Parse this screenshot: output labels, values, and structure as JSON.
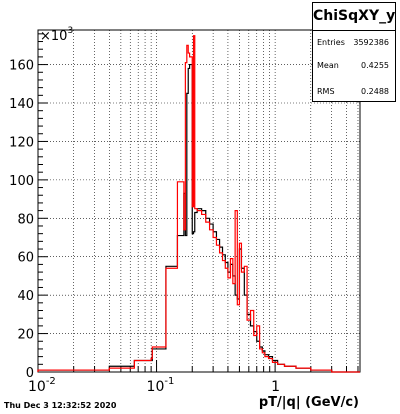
{
  "stats": {
    "title": "ChiSqXY_y",
    "rows": [
      {
        "label": "Entries",
        "value": "3592386"
      },
      {
        "label": "Mean",
        "value": "0.4255"
      },
      {
        "label": "RMS",
        "value": "0.2488"
      }
    ]
  },
  "footer": "Thu Dec  3 12:32:52 2020",
  "chart_data": {
    "type": "step-histogram",
    "title": "",
    "xlabel": "pT/|q| (GeV/c)",
    "ylabel": "",
    "y_multiplier_label": "×10",
    "y_multiplier_exponent": "3",
    "x_scale": "log",
    "xlim": [
      0.01,
      5.2
    ],
    "ylim": [
      0,
      178
    ],
    "grid": true,
    "x_tick_labels": [
      "10",
      "-2",
      "10",
      "-1",
      "1"
    ],
    "x_ticks": [
      0.01,
      0.1,
      1
    ],
    "y_ticks": [
      0,
      20,
      40,
      60,
      80,
      100,
      120,
      140,
      160
    ],
    "series": [
      {
        "color": "#000000",
        "edges": [
          0.01,
          0.04,
          0.065,
          0.09,
          0.092,
          0.12,
          0.15,
          0.17,
          0.175,
          0.18,
          0.185,
          0.19,
          0.2,
          0.205,
          0.21,
          0.22,
          0.24,
          0.26,
          0.28,
          0.3,
          0.32,
          0.34,
          0.36,
          0.38,
          0.4,
          0.42,
          0.44,
          0.46,
          0.48,
          0.5,
          0.52,
          0.55,
          0.58,
          0.62,
          0.66,
          0.7,
          0.74,
          0.78,
          0.82,
          0.88,
          0.95,
          1.05,
          1.2,
          1.5,
          2.0,
          3.0,
          5.2
        ],
        "values": [
          1,
          3,
          6,
          6,
          12,
          55,
          71,
          93,
          71,
          145,
          158,
          160,
          72,
          73,
          83,
          85,
          84,
          80,
          77,
          73,
          69,
          65,
          61,
          57,
          52,
          56,
          50,
          40,
          38,
          64,
          54,
          40,
          30,
          24,
          21,
          16,
          13,
          11,
          9,
          8,
          6,
          4,
          3,
          2,
          1,
          0
        ]
      },
      {
        "color": "#ff0000",
        "edges": [
          0.01,
          0.04,
          0.065,
          0.09,
          0.092,
          0.12,
          0.15,
          0.17,
          0.175,
          0.18,
          0.185,
          0.19,
          0.2,
          0.205,
          0.21,
          0.22,
          0.24,
          0.26,
          0.28,
          0.3,
          0.32,
          0.34,
          0.36,
          0.38,
          0.4,
          0.42,
          0.44,
          0.46,
          0.48,
          0.5,
          0.52,
          0.55,
          0.58,
          0.62,
          0.66,
          0.7,
          0.74,
          0.78,
          0.82,
          0.88,
          0.95,
          1.05,
          1.2,
          1.5,
          2.0,
          3.0,
          5.2
        ],
        "values": [
          1,
          2,
          6,
          7,
          13,
          54,
          99,
          74,
          161,
          170,
          166,
          164,
          86,
          175,
          85,
          84,
          82,
          78,
          74,
          70,
          66,
          62,
          58,
          54,
          49,
          59,
          46,
          84,
          35,
          67,
          52,
          55,
          27,
          32,
          19,
          24,
          12,
          10,
          8,
          7,
          5,
          4,
          3,
          2,
          1,
          0
        ]
      }
    ]
  }
}
